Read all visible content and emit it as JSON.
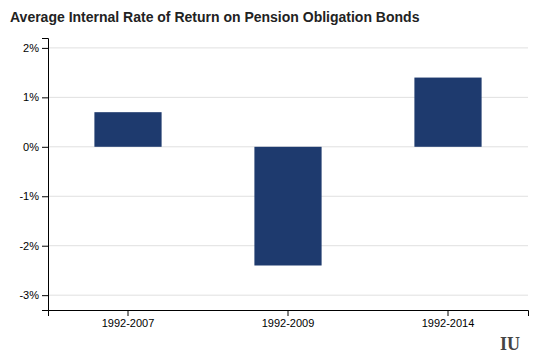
{
  "chart_data": {
    "type": "bar",
    "title": "Average Internal Rate of Return on Pension Obligation Bonds",
    "categories": [
      "1992-2007",
      "1992-2009",
      "1992-2014"
    ],
    "values": [
      0.007,
      -0.024,
      0.014
    ],
    "color": "#1e3a6e",
    "ylim": [
      -0.033,
      0.022
    ],
    "yticks": [
      {
        "value": -0.03,
        "label": "-3%"
      },
      {
        "value": -0.02,
        "label": "-2%"
      },
      {
        "value": -0.01,
        "label": "-1%"
      },
      {
        "value": 0.0,
        "label": "0%"
      },
      {
        "value": 0.01,
        "label": "1%"
      },
      {
        "value": 0.02,
        "label": "2%"
      }
    ],
    "grid": true,
    "annotations": [
      "IU"
    ]
  }
}
